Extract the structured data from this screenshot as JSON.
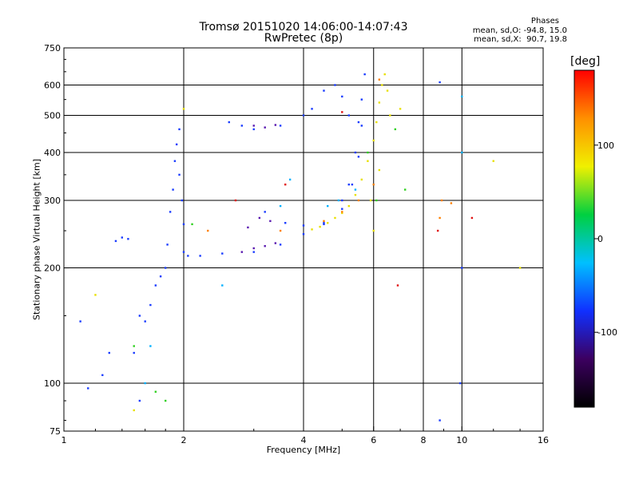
{
  "header": {
    "title_line1": "Tromsø 20151020 14:06:00-14:07:43",
    "title_line2": "RwPretec (8p)",
    "stats_heading": "Phases",
    "stats_o": "mean, sd,O: -94.8, 15.0",
    "stats_x": "mean, sd,X:  90.7, 19.8"
  },
  "colorbar": {
    "unit_label": "[deg]",
    "ticks": [
      {
        "value": 100,
        "label": "100"
      },
      {
        "value": 0,
        "label": "0"
      },
      {
        "value": -100,
        "label": "-100"
      }
    ],
    "range": [
      -180,
      180
    ],
    "colors": [
      "#000000",
      "#3c0060",
      "#1030ff",
      "#00c0ff",
      "#00d040",
      "#f0f000",
      "#ff9000",
      "#ff0000"
    ]
  },
  "chart_data": {
    "type": "scatter",
    "xlabel": "Frequency [MHz]",
    "ylabel": "Stationary phase Virtual Height [km]",
    "x_scale": "log",
    "y_scale": "log",
    "xlim": [
      1,
      16
    ],
    "ylim": [
      75,
      750
    ],
    "grid": true,
    "x_ticks": [
      {
        "value": 1,
        "label": "1"
      },
      {
        "value": 2,
        "label": "2"
      },
      {
        "value": 4,
        "label": "4"
      },
      {
        "value": 6,
        "label": "6"
      },
      {
        "value": 8,
        "label": "8"
      },
      {
        "value": 10,
        "label": "10"
      },
      {
        "value": 16,
        "label": "16"
      }
    ],
    "y_ticks": [
      {
        "value": 75,
        "label": "75"
      },
      {
        "value": 100,
        "label": "100"
      },
      {
        "value": 200,
        "label": "200"
      },
      {
        "value": 300,
        "label": "300"
      },
      {
        "value": 400,
        "label": "400"
      },
      {
        "value": 500,
        "label": "500"
      },
      {
        "value": 600,
        "label": "600"
      },
      {
        "value": 750,
        "label": "750"
      }
    ],
    "series": [
      {
        "color": "#1a3cff",
        "points": [
          [
            1.1,
            145
          ],
          [
            1.15,
            97
          ],
          [
            1.25,
            105
          ],
          [
            1.3,
            120
          ],
          [
            1.35,
            235
          ],
          [
            1.4,
            240
          ],
          [
            1.45,
            238
          ],
          [
            1.5,
            120
          ],
          [
            1.55,
            90
          ],
          [
            1.55,
            150
          ],
          [
            1.6,
            145
          ],
          [
            1.65,
            160
          ],
          [
            1.7,
            180
          ],
          [
            1.75,
            190
          ],
          [
            1.8,
            200
          ],
          [
            1.82,
            230
          ],
          [
            1.85,
            280
          ],
          [
            1.88,
            320
          ],
          [
            1.9,
            380
          ],
          [
            1.92,
            420
          ],
          [
            1.95,
            460
          ],
          [
            1.95,
            350
          ],
          [
            1.98,
            300
          ],
          [
            2.0,
            260
          ],
          [
            2.0,
            220
          ],
          [
            2.05,
            215
          ],
          [
            2.2,
            215
          ],
          [
            2.5,
            218
          ],
          [
            3.0,
            220
          ],
          [
            3.5,
            230
          ],
          [
            4.0,
            245
          ],
          [
            4.5,
            260
          ],
          [
            5.0,
            300
          ],
          [
            5.2,
            330
          ],
          [
            5.4,
            400
          ],
          [
            5.5,
            480
          ],
          [
            5.6,
            550
          ],
          [
            5.7,
            640
          ],
          [
            2.6,
            480
          ],
          [
            2.8,
            470
          ],
          [
            3.0,
            460
          ],
          [
            3.5,
            470
          ],
          [
            4.0,
            500
          ],
          [
            4.2,
            520
          ],
          [
            4.5,
            580
          ],
          [
            4.8,
            600
          ],
          [
            5.0,
            560
          ],
          [
            5.2,
            500
          ],
          [
            3.2,
            280
          ],
          [
            3.6,
            262
          ],
          [
            4.0,
            258
          ],
          [
            4.5,
            262
          ],
          [
            5.0,
            285
          ],
          [
            5.3,
            330
          ],
          [
            5.5,
            390
          ],
          [
            5.6,
            470
          ],
          [
            8.8,
            610
          ],
          [
            9.9,
            100
          ],
          [
            10.0,
            200
          ],
          [
            8.8,
            80
          ]
        ]
      },
      {
        "color": "#5a1ab0",
        "points": [
          [
            2.8,
            220
          ],
          [
            3.0,
            225
          ],
          [
            3.2,
            228
          ],
          [
            3.4,
            232
          ],
          [
            3.0,
            470
          ],
          [
            3.2,
            465
          ],
          [
            3.4,
            472
          ],
          [
            3.1,
            270
          ],
          [
            3.3,
            265
          ],
          [
            2.9,
            255
          ]
        ]
      },
      {
        "color": "#00b0ff",
        "points": [
          [
            2.5,
            180
          ],
          [
            3.5,
            290
          ],
          [
            3.7,
            340
          ],
          [
            4.6,
            290
          ],
          [
            4.9,
            300
          ],
          [
            5.4,
            320
          ],
          [
            10.0,
            560
          ],
          [
            10.0,
            400
          ],
          [
            1.65,
            125
          ],
          [
            1.6,
            100
          ]
        ]
      },
      {
        "color": "#e8e000",
        "points": [
          [
            4.2,
            252
          ],
          [
            4.4,
            256
          ],
          [
            4.6,
            262
          ],
          [
            4.8,
            270
          ],
          [
            5.0,
            278
          ],
          [
            5.2,
            290
          ],
          [
            5.4,
            310
          ],
          [
            5.6,
            340
          ],
          [
            5.8,
            380
          ],
          [
            6.0,
            430
          ],
          [
            6.1,
            480
          ],
          [
            6.2,
            540
          ],
          [
            6.3,
            600
          ],
          [
            6.4,
            640
          ],
          [
            6.5,
            580
          ],
          [
            6.6,
            500
          ],
          [
            6.2,
            360
          ],
          [
            5.9,
            300
          ],
          [
            2.0,
            520
          ],
          [
            1.2,
            170
          ],
          [
            1.5,
            85
          ],
          [
            12.0,
            380
          ],
          [
            14.0,
            200
          ],
          [
            6.0,
            250
          ],
          [
            7.0,
            520
          ]
        ]
      },
      {
        "color": "#ff8000",
        "points": [
          [
            4.5,
            265
          ],
          [
            5.0,
            280
          ],
          [
            5.5,
            300
          ],
          [
            6.0,
            330
          ],
          [
            8.9,
            300
          ],
          [
            8.8,
            270
          ],
          [
            9.4,
            295
          ],
          [
            3.5,
            250
          ],
          [
            2.3,
            250
          ],
          [
            6.2,
            620
          ]
        ]
      },
      {
        "color": "#30d020",
        "points": [
          [
            1.7,
            95
          ],
          [
            1.8,
            90
          ],
          [
            2.1,
            260
          ],
          [
            5.8,
            400
          ],
          [
            6.1,
            300
          ],
          [
            7.2,
            320
          ],
          [
            1.5,
            125
          ],
          [
            6.8,
            460
          ]
        ]
      },
      {
        "color": "#e01010",
        "points": [
          [
            3.6,
            330
          ],
          [
            2.7,
            300
          ],
          [
            10.6,
            270
          ],
          [
            6.9,
            180
          ],
          [
            8.7,
            250
          ],
          [
            5.0,
            510
          ]
        ]
      }
    ]
  }
}
